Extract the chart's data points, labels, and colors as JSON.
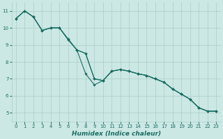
{
  "xlabel": "Humidex (Indice chaleur)",
  "bg_color": "#cce8e4",
  "grid_color": "#aaccc8",
  "line_color": "#1a6e64",
  "xlim": [
    -0.5,
    23.5
  ],
  "ylim": [
    4.5,
    11.5
  ],
  "xtick_labels": [
    "0",
    "1",
    "2",
    "3",
    "4",
    "5",
    "6",
    "7",
    "8",
    "9",
    "10",
    "11",
    "12",
    "13",
    "14",
    "15",
    "16",
    "17",
    "18",
    "19",
    "20",
    "21",
    "22",
    "23"
  ],
  "yticks": [
    5,
    6,
    7,
    8,
    9,
    10,
    11
  ],
  "line1_x": [
    0,
    1,
    2,
    3,
    4,
    5,
    6,
    7,
    8,
    9,
    10,
    11,
    12,
    13,
    14,
    15,
    16,
    17,
    18,
    19,
    20,
    21,
    22,
    23
  ],
  "line1_y": [
    10.55,
    11.0,
    10.65,
    9.85,
    10.0,
    10.0,
    9.3,
    8.7,
    8.5,
    7.0,
    6.9,
    7.45,
    7.55,
    7.45,
    7.3,
    7.2,
    7.0,
    6.8,
    6.4,
    6.1,
    5.8,
    5.3,
    5.1,
    5.1
  ],
  "line2_x": [
    0,
    1,
    2,
    3,
    4,
    5,
    6,
    7,
    8,
    9,
    10,
    11,
    12,
    13,
    14,
    15,
    16,
    17,
    18,
    19,
    20,
    21,
    22,
    23
  ],
  "line2_y": [
    10.55,
    11.0,
    10.65,
    9.85,
    10.0,
    10.0,
    9.3,
    8.7,
    7.3,
    6.65,
    6.9,
    7.45,
    7.55,
    7.45,
    7.3,
    7.2,
    7.0,
    6.8,
    6.4,
    6.1,
    5.8,
    5.3,
    5.1,
    5.1
  ],
  "line3_x": [
    0,
    1,
    2,
    3,
    4,
    5,
    6,
    7,
    8,
    9,
    10,
    11,
    12,
    13,
    14,
    15,
    16,
    17,
    18,
    19,
    20,
    21,
    22,
    23
  ],
  "line3_y": [
    10.55,
    11.0,
    10.65,
    9.85,
    10.0,
    10.0,
    9.35,
    8.7,
    8.5,
    7.0,
    6.9,
    7.45,
    7.55,
    7.45,
    7.3,
    7.2,
    7.0,
    6.8,
    6.4,
    6.1,
    5.8,
    5.3,
    5.1,
    5.1
  ],
  "xlabel_fontsize": 6.5,
  "tick_fontsize": 5.0
}
